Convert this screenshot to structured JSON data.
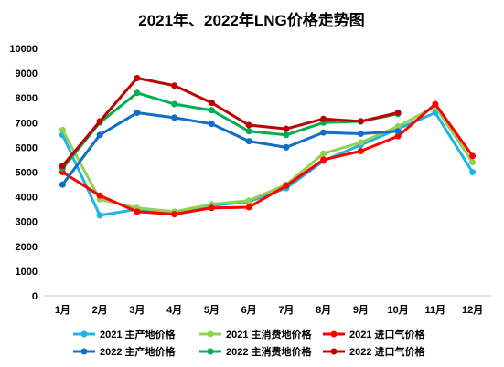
{
  "chart_data": {
    "type": "line",
    "title": "2021年、2022年LNG价格走势图",
    "xlabel": "",
    "ylabel": "",
    "categories": [
      "1月",
      "2月",
      "3月",
      "4月",
      "5月",
      "6月",
      "7月",
      "8月",
      "9月",
      "10月",
      "11月",
      "12月"
    ],
    "ylim": [
      0,
      10000
    ],
    "yticks": [
      0,
      1000,
      2000,
      3000,
      4000,
      5000,
      6000,
      7000,
      8000,
      9000,
      10000
    ],
    "grid": false,
    "legend_position": "bottom",
    "series": [
      {
        "name": "2021 主产地价格",
        "color": "#1cb4e8",
        "values": [
          6500,
          3250,
          3500,
          3350,
          3650,
          3800,
          4350,
          5450,
          6100,
          6750,
          7400,
          5000
        ]
      },
      {
        "name": "2021 主消费地价格",
        "color": "#92d050",
        "values": [
          6700,
          3900,
          3550,
          3400,
          3700,
          3850,
          4500,
          5750,
          6200,
          6850,
          7650,
          5400
        ]
      },
      {
        "name": "2021 进口气价格",
        "color": "#ff0000",
        "values": [
          5000,
          4050,
          3400,
          3300,
          3550,
          3580,
          4450,
          5500,
          5850,
          6450,
          7750,
          5650
        ]
      },
      {
        "name": "2022 主产地价格",
        "color": "#0f6fc6",
        "values": [
          4500,
          6500,
          7400,
          7200,
          6950,
          6250,
          6000,
          6600,
          6550,
          6650,
          null,
          null
        ]
      },
      {
        "name": "2022 主消费地价格",
        "color": "#00b050",
        "values": [
          5150,
          7000,
          8200,
          7750,
          7500,
          6650,
          6500,
          7000,
          7050,
          7350,
          null,
          null
        ]
      },
      {
        "name": "2022 进口气价格",
        "color": "#c00000",
        "values": [
          5250,
          7050,
          8800,
          8500,
          7800,
          6900,
          6750,
          7150,
          7050,
          7400,
          null,
          null
        ]
      }
    ]
  }
}
